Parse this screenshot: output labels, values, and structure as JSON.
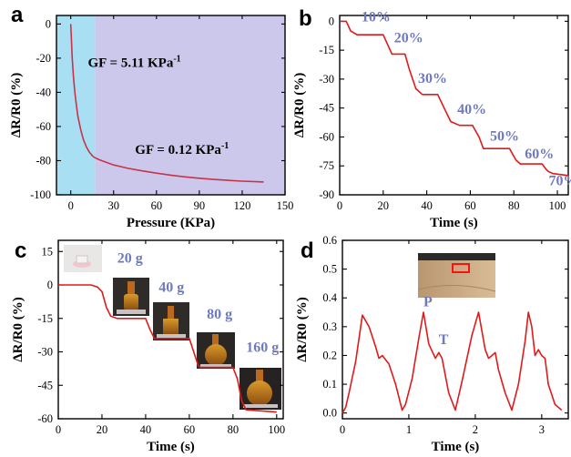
{
  "colors": {
    "line": "#e01a1a",
    "line_a": "#c8324a",
    "region_low": "#a8dff2",
    "region_high": "#ccc8ec",
    "annotation": "#6e79c0"
  },
  "chart_data": [
    {
      "panel": "a",
      "type": "line",
      "xlabel": "Pressure (KPa)",
      "ylabel": "ΔR/R0 (%)",
      "xlim": [
        -10,
        150
      ],
      "ylim": [
        -100,
        5
      ],
      "xticks": [
        0,
        30,
        60,
        90,
        120,
        150
      ],
      "yticks": [
        0,
        -20,
        -40,
        -60,
        -80,
        -100
      ],
      "regions": [
        {
          "x_from": -10,
          "x_to": 17,
          "color": "region_low"
        },
        {
          "x_from": 17,
          "x_to": 150,
          "color": "region_high"
        }
      ],
      "annotations": [
        {
          "text": "GF = 5.11  KPa-1",
          "main": "GF = 5.11  KPa",
          "sup": "-1",
          "x": 12,
          "y": -25
        },
        {
          "text": "GF = 0.12 KPa-1",
          "main": "GF = 0.12 KPa",
          "sup": "-1",
          "x": 45,
          "y": -76
        }
      ],
      "series": [
        {
          "x": [
            0,
            0.5,
            1,
            2,
            3,
            4,
            5,
            6,
            7,
            8,
            9,
            10,
            11,
            12,
            13,
            14,
            15,
            16,
            17,
            20,
            25,
            30,
            40,
            50,
            60,
            70,
            80,
            90,
            100,
            110,
            120,
            130,
            135
          ],
          "y": [
            0,
            -10,
            -20,
            -32,
            -41,
            -48,
            -54,
            -58,
            -62,
            -65,
            -68,
            -70,
            -72,
            -73.5,
            -75,
            -76,
            -77,
            -77.8,
            -78.3,
            -79.5,
            -81,
            -82.5,
            -84.5,
            -86,
            -87.3,
            -88.5,
            -89.5,
            -90.3,
            -91,
            -91.5,
            -92,
            -92.3,
            -92.5
          ]
        }
      ]
    },
    {
      "panel": "b",
      "type": "line",
      "xlabel": "Time (s)",
      "ylabel": "ΔR/R0 (%)",
      "xlim": [
        0,
        105
      ],
      "ylim": [
        -90,
        3
      ],
      "xticks": [
        0,
        20,
        40,
        60,
        80,
        100
      ],
      "yticks": [
        0,
        -15,
        -30,
        -45,
        -60,
        -75,
        -90
      ],
      "annotations": [
        {
          "text": "10%",
          "x": 10,
          "y": 0
        },
        {
          "text": "20%",
          "x": 25,
          "y": -11
        },
        {
          "text": "30%",
          "x": 36,
          "y": -32
        },
        {
          "text": "40%",
          "x": 54,
          "y": -48
        },
        {
          "text": "50%",
          "x": 69,
          "y": -62
        },
        {
          "text": "60%",
          "x": 85,
          "y": -71
        },
        {
          "text": "70%",
          "x": 96,
          "y": -85
        }
      ],
      "series": [
        {
          "x": [
            0,
            3,
            5,
            8,
            20,
            22,
            24,
            30,
            32,
            35,
            38,
            45,
            48,
            51,
            55,
            61,
            64,
            66,
            78,
            81,
            83,
            93,
            95,
            96,
            98,
            105
          ],
          "y": [
            0,
            0,
            -5,
            -7,
            -7,
            -12,
            -17,
            -17,
            -25,
            -35,
            -38,
            -38,
            -45,
            -52,
            -54,
            -54,
            -60,
            -66,
            -66,
            -72,
            -74,
            -74,
            -77,
            -78,
            -79,
            -80
          ]
        }
      ]
    },
    {
      "panel": "c",
      "type": "line",
      "xlabel": "Time (s)",
      "ylabel": "ΔR/R0 (%)",
      "xlim": [
        0,
        103
      ],
      "ylim": [
        -60,
        20
      ],
      "xticks": [
        0,
        20,
        40,
        60,
        80,
        100
      ],
      "yticks": [
        15,
        0,
        -15,
        -30,
        -45,
        -60
      ],
      "annotations": [
        {
          "text": "20 g",
          "x": 27,
          "y": 10
        },
        {
          "text": "40 g",
          "x": 46,
          "y": -3
        },
        {
          "text": "80 g",
          "x": 68,
          "y": -15
        },
        {
          "text": "160 g",
          "x": 86,
          "y": -30
        }
      ],
      "series": [
        {
          "x": [
            0,
            15,
            18,
            20,
            22,
            24,
            27,
            40,
            42,
            44,
            60,
            62,
            64,
            65,
            80,
            82,
            84,
            86,
            100
          ],
          "y": [
            0,
            0,
            -1,
            -3,
            -10,
            -14,
            -15,
            -15,
            -20,
            -24,
            -24,
            -30,
            -36,
            -37,
            -37,
            -42,
            -52,
            -56,
            -57
          ]
        }
      ]
    },
    {
      "panel": "d",
      "type": "line",
      "xlabel": "Time (s)",
      "ylabel": "ΔR/R0 (%)",
      "xlim": [
        0,
        3.4
      ],
      "ylim": [
        -0.02,
        0.6
      ],
      "xticks": [
        0,
        1,
        2,
        3
      ],
      "yticks": [
        0.0,
        0.1,
        0.2,
        0.3,
        0.4,
        0.5,
        0.6
      ],
      "annotations": [
        {
          "text": "P",
          "x": 1.22,
          "y": 0.37
        },
        {
          "text": "T",
          "x": 1.45,
          "y": 0.24
        }
      ],
      "series": [
        {
          "x": [
            0,
            0.05,
            0.1,
            0.2,
            0.3,
            0.4,
            0.5,
            0.55,
            0.6,
            0.7,
            0.8,
            0.9,
            0.95,
            1.05,
            1.15,
            1.22,
            1.3,
            1.4,
            1.45,
            1.5,
            1.6,
            1.7,
            1.8,
            1.95,
            2.05,
            2.15,
            2.2,
            2.3,
            2.35,
            2.45,
            2.55,
            2.65,
            2.75,
            2.8,
            2.85,
            2.9,
            2.95,
            3.0,
            3.05,
            3.1,
            3.2,
            3.3
          ],
          "y": [
            0.0,
            0.02,
            0.07,
            0.18,
            0.34,
            0.3,
            0.23,
            0.19,
            0.2,
            0.17,
            0.1,
            0.01,
            0.03,
            0.12,
            0.26,
            0.35,
            0.24,
            0.19,
            0.21,
            0.19,
            0.07,
            0.01,
            0.11,
            0.27,
            0.35,
            0.22,
            0.19,
            0.21,
            0.15,
            0.07,
            0.01,
            0.1,
            0.25,
            0.35,
            0.3,
            0.2,
            0.22,
            0.2,
            0.19,
            0.1,
            0.03,
            0.01
          ]
        }
      ]
    }
  ],
  "figure": {
    "panel_letters": [
      "a",
      "b",
      "c",
      "d"
    ],
    "photos_c": [
      "photo-unloaded",
      "photo-20g",
      "photo-40g",
      "photo-80g",
      "photo-160g"
    ],
    "photo_d": "photo-wrist-sensor"
  }
}
